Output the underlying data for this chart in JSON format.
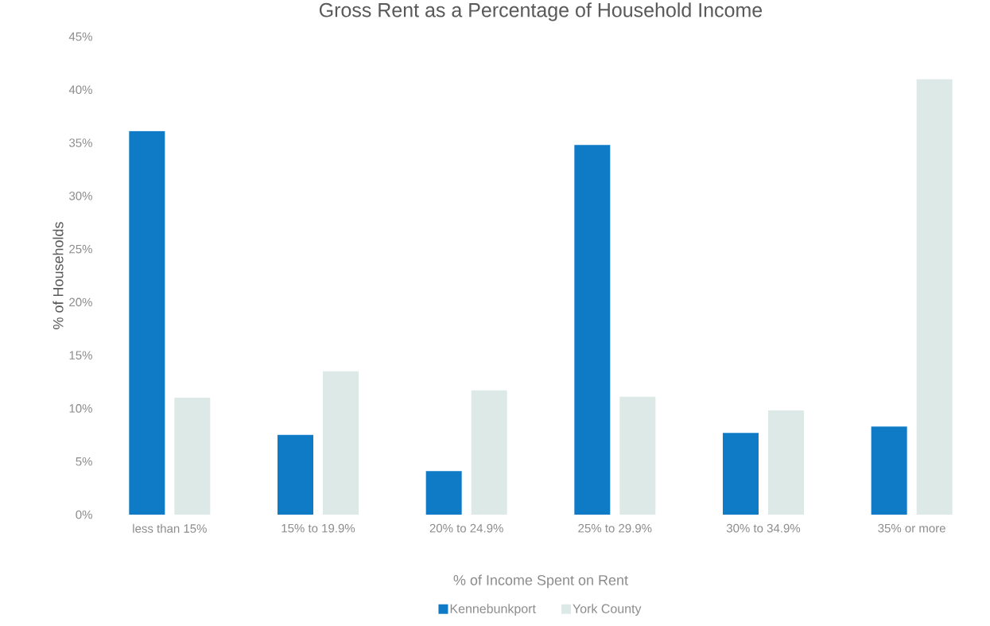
{
  "chart_data": {
    "type": "bar",
    "title": "Gross Rent as a Percentage of Household Income",
    "xlabel": "% of Income Spent on Rent",
    "ylabel": "% of Households",
    "categories": [
      "less than 15%",
      "15% to 19.9%",
      "20% to 24.9%",
      "25% to 29.9%",
      "30% to 34.9%",
      "35% or more"
    ],
    "series": [
      {
        "name": "Kennebunkport",
        "color": "#0f7ac6",
        "values": [
          36.1,
          7.5,
          4.1,
          34.8,
          7.7,
          8.3
        ]
      },
      {
        "name": "York County",
        "color": "#dde9e7",
        "values": [
          11.0,
          13.5,
          11.7,
          11.1,
          9.8,
          41.0
        ]
      }
    ],
    "ylim": [
      0,
      45
    ],
    "yticks": [
      {
        "value": 0,
        "label": "0%"
      },
      {
        "value": 5,
        "label": "5%"
      },
      {
        "value": 10,
        "label": "10%"
      },
      {
        "value": 15,
        "label": "15%"
      },
      {
        "value": 20,
        "label": "20%"
      },
      {
        "value": 25,
        "label": "25%"
      },
      {
        "value": 30,
        "label": "30%"
      },
      {
        "value": 35,
        "label": "35%"
      },
      {
        "value": 40,
        "label": "40%"
      },
      {
        "value": 45,
        "label": "45%"
      }
    ],
    "grid": false,
    "legend": "bottom"
  }
}
